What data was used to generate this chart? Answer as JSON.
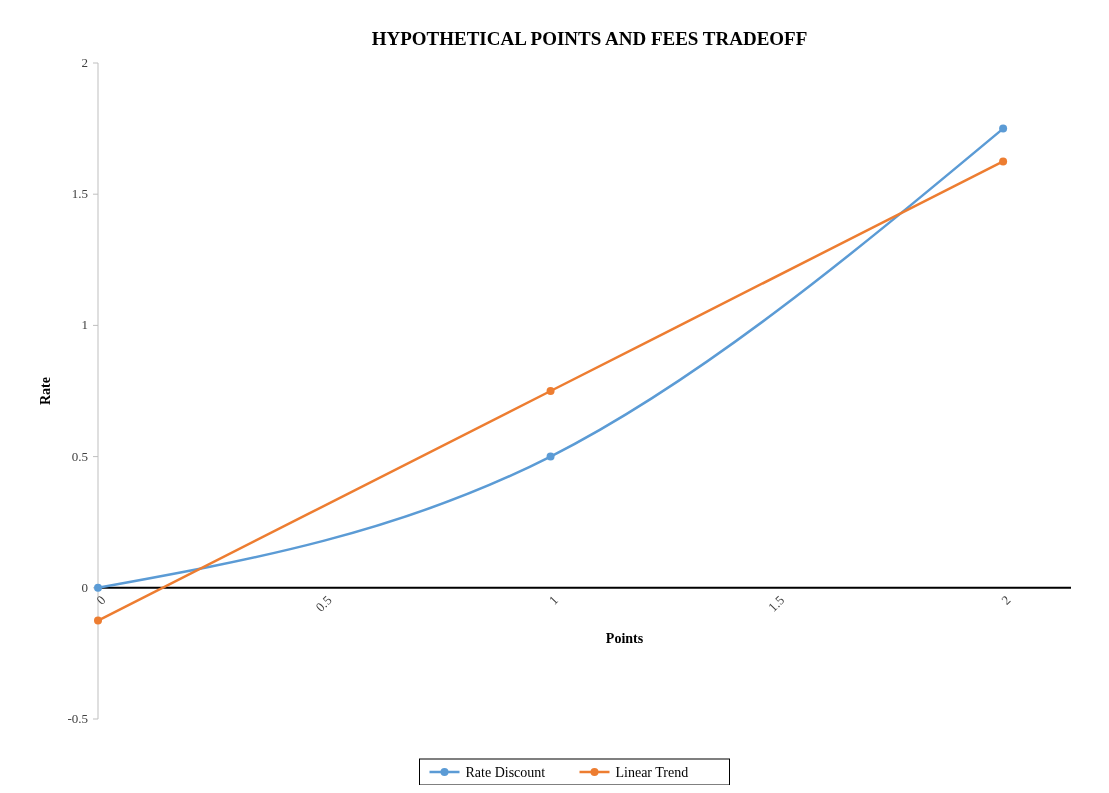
{
  "chart_data": {
    "type": "line",
    "title": "HYPOTHETICAL POINTS AND FEES TRADEOFF",
    "xlabel": "Points",
    "ylabel": "Rate",
    "x": [
      0,
      1,
      2
    ],
    "series": [
      {
        "name": "Rate Discount",
        "color": "#5b9bd5",
        "values": [
          0,
          0.5,
          1.75
        ]
      },
      {
        "name": "Linear Trend",
        "color": "#ed7d31",
        "values": [
          -0.125,
          0.75,
          1.625
        ]
      }
    ],
    "xlim": [
      0,
      2.15
    ],
    "xticks": [
      0,
      0.5,
      1,
      1.5,
      2
    ],
    "ylim": [
      -0.5,
      2
    ],
    "yticks": [
      -0.5,
      0,
      0.5,
      1,
      1.5,
      2
    ],
    "grid": false,
    "legend": "bottom",
    "marker": "circle"
  }
}
